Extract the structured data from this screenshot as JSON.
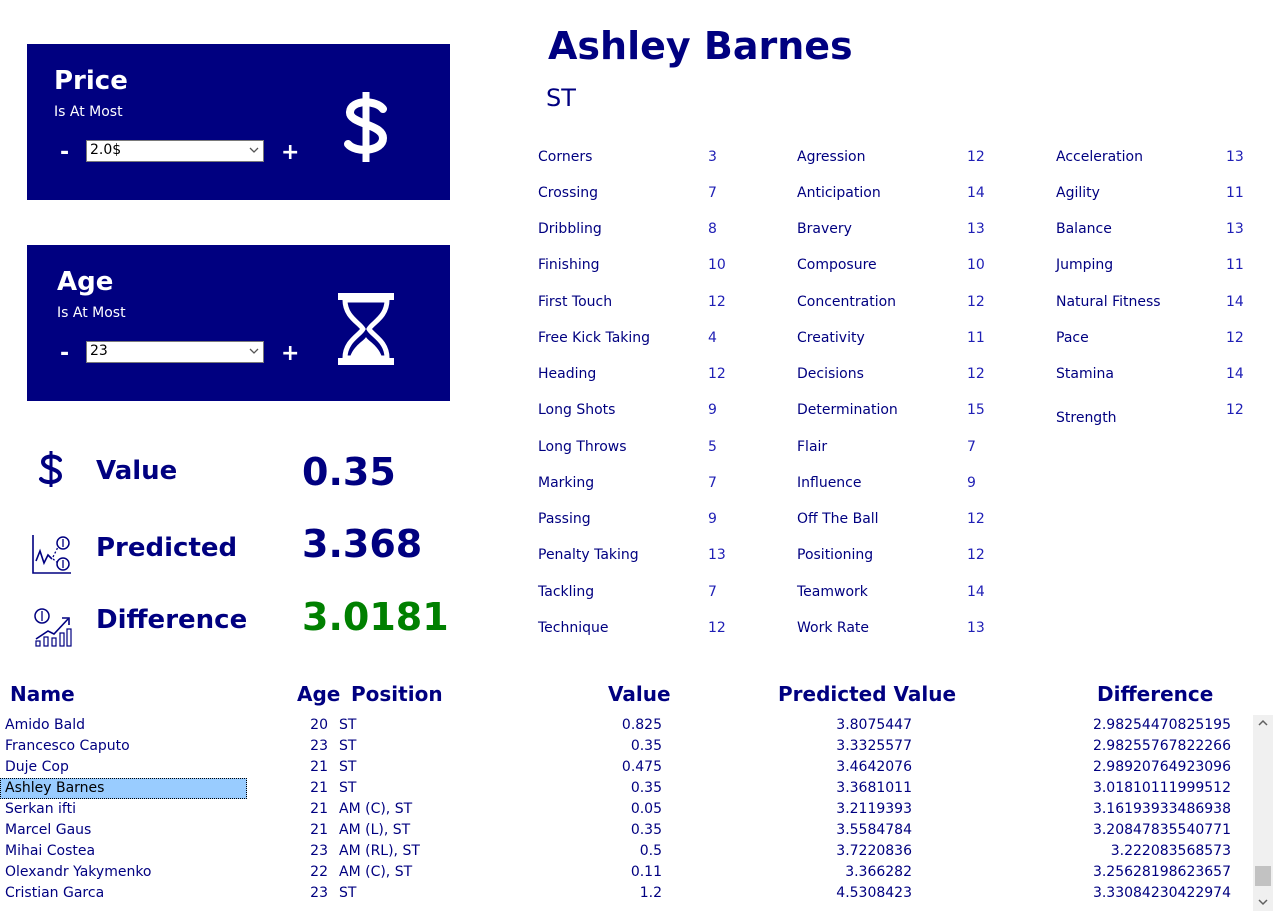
{
  "price_panel": {
    "title": "Price",
    "subtitle": "Is At Most",
    "value": "2.0$",
    "minus": "-",
    "plus": "+"
  },
  "age_panel": {
    "title": "Age",
    "subtitle": "Is At Most",
    "value": "23",
    "minus": "-",
    "plus": "+"
  },
  "metrics": {
    "value_label": "Value",
    "value": "0.35",
    "predicted_label": "Predicted",
    "predicted": "3.368",
    "difference_label": "Difference",
    "difference": "3.0181",
    "difference_color": "#008000"
  },
  "player": {
    "name": "Ashley Barnes",
    "position": "ST"
  },
  "attributes": {
    "col1": [
      {
        "name": "Corners",
        "value": "3"
      },
      {
        "name": "Crossing",
        "value": "7"
      },
      {
        "name": "Dribbling",
        "value": "8"
      },
      {
        "name": "Finishing",
        "value": "10"
      },
      {
        "name": "First Touch",
        "value": "12"
      },
      {
        "name": "Free Kick Taking",
        "value": "4"
      },
      {
        "name": "Heading",
        "value": "12"
      },
      {
        "name": "Long Shots",
        "value": "9"
      },
      {
        "name": "Long Throws",
        "value": "5"
      },
      {
        "name": "Marking",
        "value": "7"
      },
      {
        "name": "Passing",
        "value": "9"
      },
      {
        "name": "Penalty Taking",
        "value": "13"
      },
      {
        "name": "Tackling",
        "value": "7"
      },
      {
        "name": "Technique",
        "value": "12"
      }
    ],
    "col2": [
      {
        "name": "Agression",
        "value": "12"
      },
      {
        "name": "Anticipation",
        "value": "14"
      },
      {
        "name": "Bravery",
        "value": "13"
      },
      {
        "name": "Composure",
        "value": "10"
      },
      {
        "name": "Concentration",
        "value": "12"
      },
      {
        "name": "Creativity",
        "value": "11"
      },
      {
        "name": "Decisions",
        "value": "12"
      },
      {
        "name": "Determination",
        "value": "15"
      },
      {
        "name": "Flair",
        "value": "7"
      },
      {
        "name": "Influence",
        "value": "9"
      },
      {
        "name": "Off The Ball",
        "value": "12"
      },
      {
        "name": "Positioning",
        "value": "12"
      },
      {
        "name": "Teamwork",
        "value": "14"
      },
      {
        "name": "Work Rate",
        "value": "13"
      }
    ],
    "col3": [
      {
        "name": "Acceleration",
        "value": "13"
      },
      {
        "name": "Agility",
        "value": "11"
      },
      {
        "name": "Balance",
        "value": "13"
      },
      {
        "name": "Jumping",
        "value": "11"
      },
      {
        "name": "Natural Fitness",
        "value": "14"
      },
      {
        "name": "Pace",
        "value": "12"
      },
      {
        "name": "Stamina",
        "value": "14"
      },
      {
        "name": "Strength",
        "value": "12"
      }
    ]
  },
  "table": {
    "headers": {
      "name": "Name",
      "age": "Age",
      "position": "Position",
      "value": "Value",
      "predicted": "Predicted Value",
      "difference": "Difference"
    },
    "rows": [
      {
        "name": "Amido Bald",
        "age": "20",
        "position": "ST",
        "value": "0.825",
        "predicted": "3.8075447",
        "difference": "2.98254470825195",
        "selected": false
      },
      {
        "name": "Francesco Caputo",
        "age": "23",
        "position": "ST",
        "value": "0.35",
        "predicted": "3.3325577",
        "difference": "2.98255767822266",
        "selected": false
      },
      {
        "name": "Duje Cop",
        "age": "21",
        "position": "ST",
        "value": "0.475",
        "predicted": "3.4642076",
        "difference": "2.98920764923096",
        "selected": false
      },
      {
        "name": "Ashley Barnes",
        "age": "21",
        "position": "ST",
        "value": "0.35",
        "predicted": "3.3681011",
        "difference": "3.01810111999512",
        "selected": true
      },
      {
        "name": "Serkan ifti",
        "age": "21",
        "position": "AM (C), ST",
        "value": "0.05",
        "predicted": "3.2119393",
        "difference": "3.16193933486938",
        "selected": false
      },
      {
        "name": "Marcel Gaus",
        "age": "21",
        "position": "AM (L), ST",
        "value": "0.35",
        "predicted": "3.5584784",
        "difference": "3.20847835540771",
        "selected": false
      },
      {
        "name": "Mihai Costea",
        "age": "23",
        "position": "AM (RL), ST",
        "value": "0.5",
        "predicted": "3.7220836",
        "difference": "3.222083568573",
        "selected": false
      },
      {
        "name": "Olexandr Yakymenko",
        "age": "22",
        "position": "AM (C), ST",
        "value": "0.11",
        "predicted": "3.366282",
        "difference": "3.25628198623657",
        "selected": false
      },
      {
        "name": "Cristian Garca",
        "age": "23",
        "position": "ST",
        "value": "1.2",
        "predicted": "4.5308423",
        "difference": "3.33084230422974",
        "selected": false
      }
    ]
  },
  "icons": {
    "price": "dollar-sign-icon",
    "age": "hourglass-icon",
    "value": "dollar-sign-icon",
    "predicted": "chart-forecast-icon",
    "difference": "growth-chart-icon"
  },
  "colors": {
    "brand": "#000080",
    "selection": "#99ccff",
    "attr_value": "#1f1fb5"
  }
}
